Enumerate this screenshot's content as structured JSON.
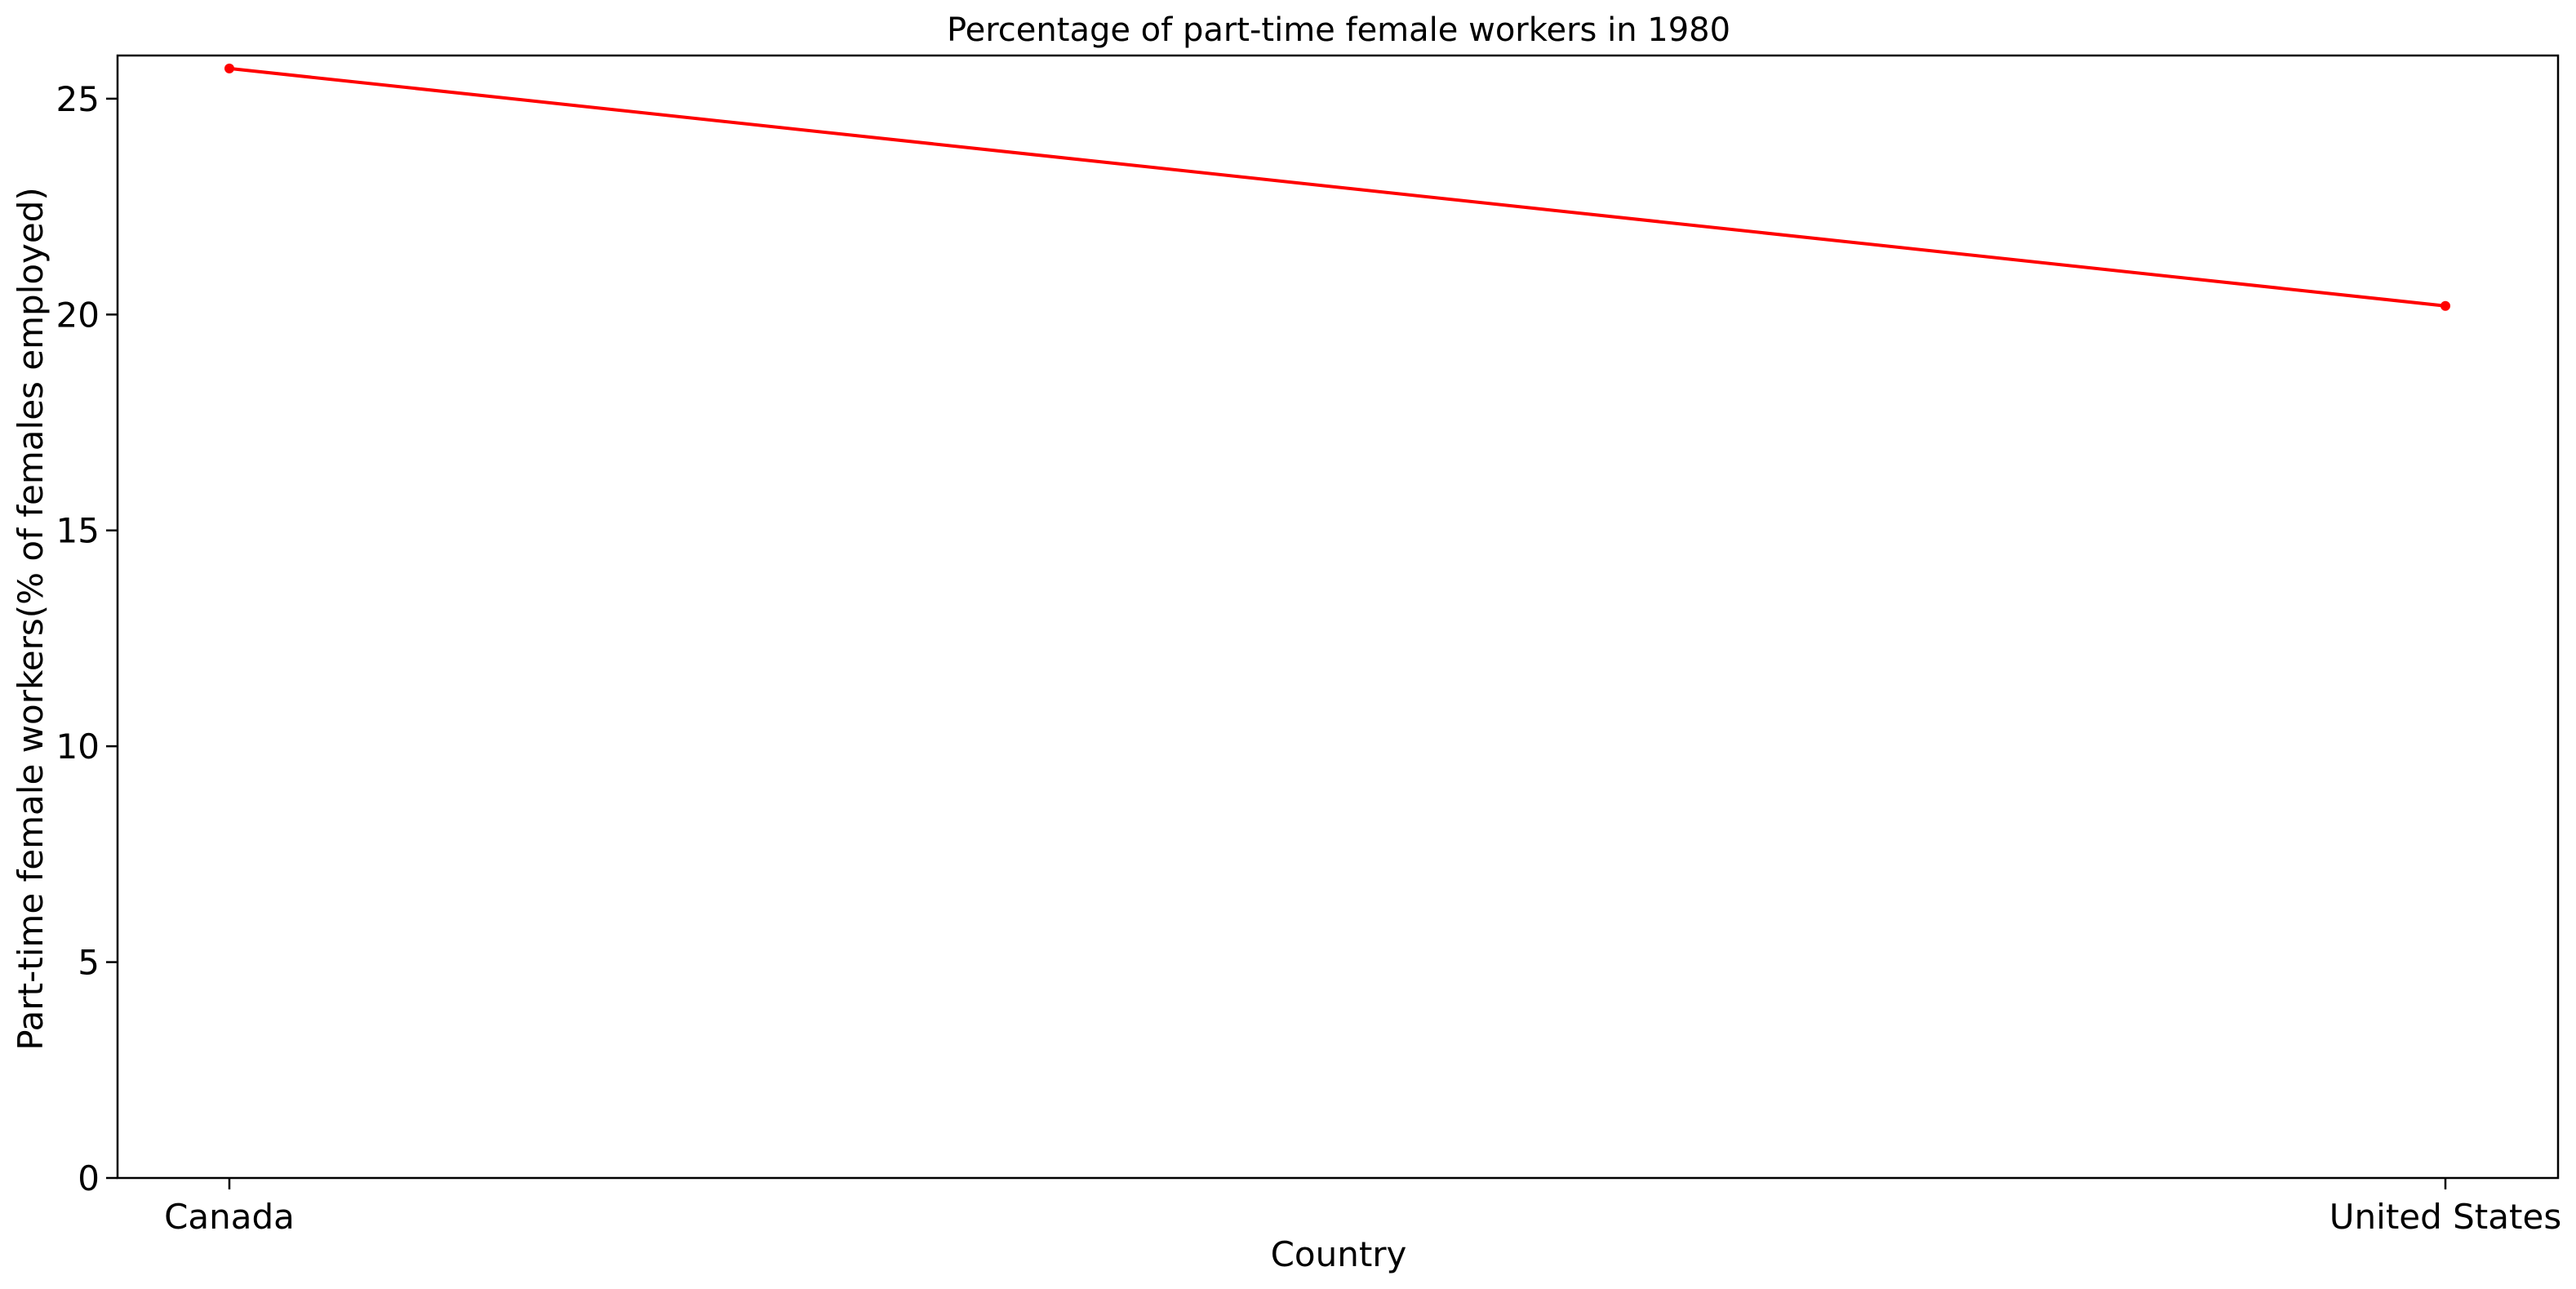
{
  "chart_data": {
    "type": "line",
    "title": "Percentage of part-time female workers in 1980",
    "xlabel": "Country",
    "ylabel": "Part-time female workers(% of females employed)",
    "categories": [
      "Canada",
      "United States"
    ],
    "series": [
      {
        "values": [
          25.7,
          20.2
        ],
        "color": "#ff0000",
        "marker": "circle"
      }
    ],
    "ylim": [
      0,
      26
    ],
    "yticks": [
      0,
      5,
      10,
      15,
      20,
      25
    ],
    "grid": false,
    "legend": "none"
  }
}
